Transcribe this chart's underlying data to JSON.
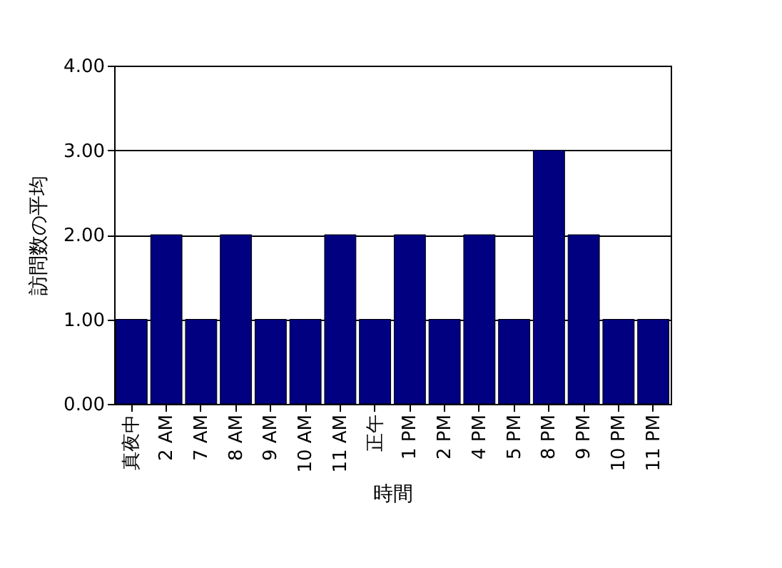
{
  "chart_data": {
    "type": "bar",
    "xlabel": "時間",
    "ylabel": "訪問数の平均",
    "categories": [
      "真夜中",
      "2 AM",
      "7 AM",
      "8 AM",
      "9 AM",
      "10 AM",
      "11 AM",
      "正午",
      "1 PM",
      "2 PM",
      "4 PM",
      "5 PM",
      "8 PM",
      "9 PM",
      "10 PM",
      "11 PM"
    ],
    "values": [
      1,
      2,
      1,
      2,
      1,
      1,
      2,
      1,
      2,
      1,
      2,
      1,
      3,
      2,
      1,
      1
    ],
    "color": "#000080",
    "ylim": [
      0,
      4
    ],
    "yticks": [
      {
        "value": 0,
        "label": "0.00"
      },
      {
        "value": 1,
        "label": "1.00"
      },
      {
        "value": 2,
        "label": "2.00"
      },
      {
        "value": 3,
        "label": "3.00"
      },
      {
        "value": 4,
        "label": "4.00"
      }
    ],
    "grid": true
  }
}
